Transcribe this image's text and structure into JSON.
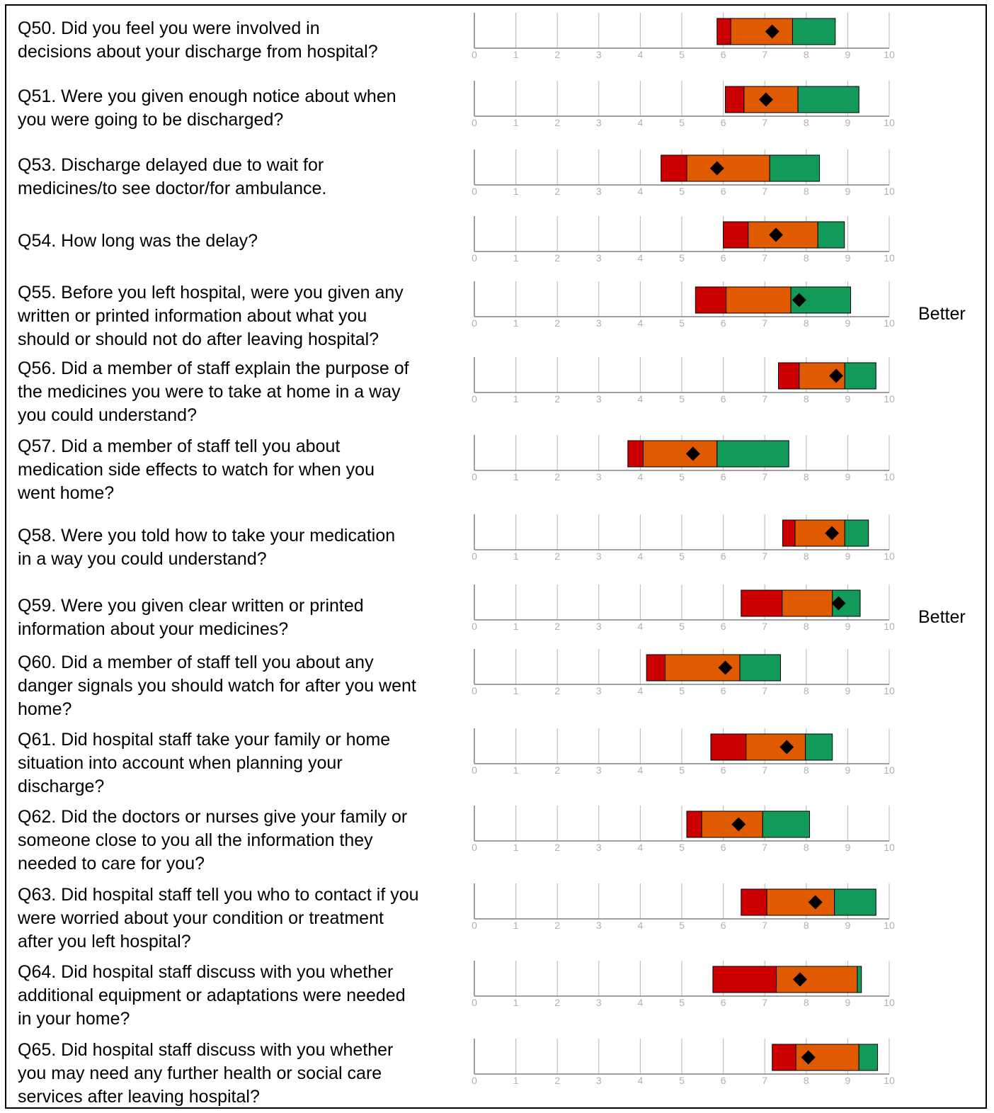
{
  "colors": {
    "low": "#cc0000",
    "mid": "#e05a00",
    "high": "#119a5a",
    "marker": "#000000",
    "grid": "#c0c0c0",
    "axis": "#808080",
    "tick_label": "#b0b0b0"
  },
  "chart_data": {
    "type": "range-bar",
    "xlim": [
      0,
      10
    ],
    "ticks": [
      "0",
      "1",
      "2",
      "3",
      "4",
      "5",
      "6",
      "7",
      "8",
      "9",
      "10"
    ],
    "questions": [
      {
        "id": "q50",
        "label": "Q50. Did you feel you were involved in\ndecisions about your discharge from hospital?",
        "lo": 5.85,
        "b1": 6.18,
        "b2": 7.67,
        "hi": 8.7,
        "score": 7.18,
        "rating": ""
      },
      {
        "id": "q51",
        "label": "Q51. Were you given enough notice about when\nyou were going to be discharged?",
        "lo": 6.05,
        "b1": 6.5,
        "b2": 7.8,
        "hi": 9.27,
        "score": 7.03,
        "rating": ""
      },
      {
        "id": "q53",
        "label": "Q53. Discharge delayed due to wait for\nmedicines/to see doctor/for ambulance.",
        "lo": 4.5,
        "b1": 5.12,
        "b2": 7.12,
        "hi": 8.32,
        "score": 5.85,
        "rating": ""
      },
      {
        "id": "q54",
        "label": "Q54. How long was the delay?",
        "lo": 6.0,
        "b1": 6.6,
        "b2": 8.28,
        "hi": 8.92,
        "score": 7.27,
        "rating": ""
      },
      {
        "id": "q55",
        "label": "Q55. Before you left hospital, were you given any\nwritten or printed information about what you\nshould or should not do after leaving hospital?",
        "lo": 5.33,
        "b1": 6.07,
        "b2": 7.63,
        "hi": 9.07,
        "score": 7.83,
        "rating": "Better"
      },
      {
        "id": "q56",
        "label": "Q56. Did a member of staff explain the purpose of\nthe medicines you were to take at home in a way\nyou could understand?",
        "lo": 7.33,
        "b1": 7.83,
        "b2": 8.93,
        "hi": 9.68,
        "score": 8.72,
        "rating": ""
      },
      {
        "id": "q57",
        "label": "Q57. Did a member of staff tell you about\nmedication side effects to watch for when you\nwent home?",
        "lo": 3.7,
        "b1": 4.07,
        "b2": 5.85,
        "hi": 7.58,
        "score": 5.27,
        "rating": ""
      },
      {
        "id": "q58",
        "label": "Q58. Were you told how to take your medication\nin a way you could understand?",
        "lo": 7.43,
        "b1": 7.73,
        "b2": 8.93,
        "hi": 9.5,
        "score": 8.62,
        "rating": ""
      },
      {
        "id": "q59",
        "label": "Q59. Were you given clear written or printed\ninformation about your medicines?",
        "lo": 6.43,
        "b1": 7.42,
        "b2": 8.63,
        "hi": 9.3,
        "score": 8.78,
        "rating": "Better"
      },
      {
        "id": "q60",
        "label": "Q60. Did a member of staff tell you about any\ndanger signals you should watch for after you went\nhome?",
        "lo": 4.15,
        "b1": 4.6,
        "b2": 6.4,
        "hi": 7.38,
        "score": 6.05,
        "rating": ""
      },
      {
        "id": "q61",
        "label": "Q61. Did hospital staff take your family or home\nsituation into account when planning your\ndischarge?",
        "lo": 5.7,
        "b1": 6.55,
        "b2": 7.98,
        "hi": 8.63,
        "score": 7.53,
        "rating": ""
      },
      {
        "id": "q62",
        "label": "Q62. Did the doctors or nurses give your family or\nsomeone close to you all the information they\nneeded to care for you?",
        "lo": 5.12,
        "b1": 5.48,
        "b2": 6.95,
        "hi": 8.08,
        "score": 6.37,
        "rating": ""
      },
      {
        "id": "q63",
        "label": "Q63. Did hospital staff tell you who to contact if you\nwere worried about your condition or treatment\nafter you left hospital?",
        "lo": 6.43,
        "b1": 7.05,
        "b2": 8.68,
        "hi": 9.68,
        "score": 8.22,
        "rating": ""
      },
      {
        "id": "q64",
        "label": "Q64. Did hospital staff discuss with you whether\nadditional equipment or adaptations were needed\nin your home?",
        "lo": 5.75,
        "b1": 7.28,
        "b2": 9.23,
        "hi": 9.33,
        "score": 7.85,
        "rating": ""
      },
      {
        "id": "q65",
        "label": "Q65. Did hospital staff discuss with you whether\nyou may need any further health or social care\nservices after leaving hospital?",
        "lo": 7.18,
        "b1": 7.75,
        "b2": 9.27,
        "hi": 9.72,
        "score": 8.05,
        "rating": ""
      }
    ]
  }
}
